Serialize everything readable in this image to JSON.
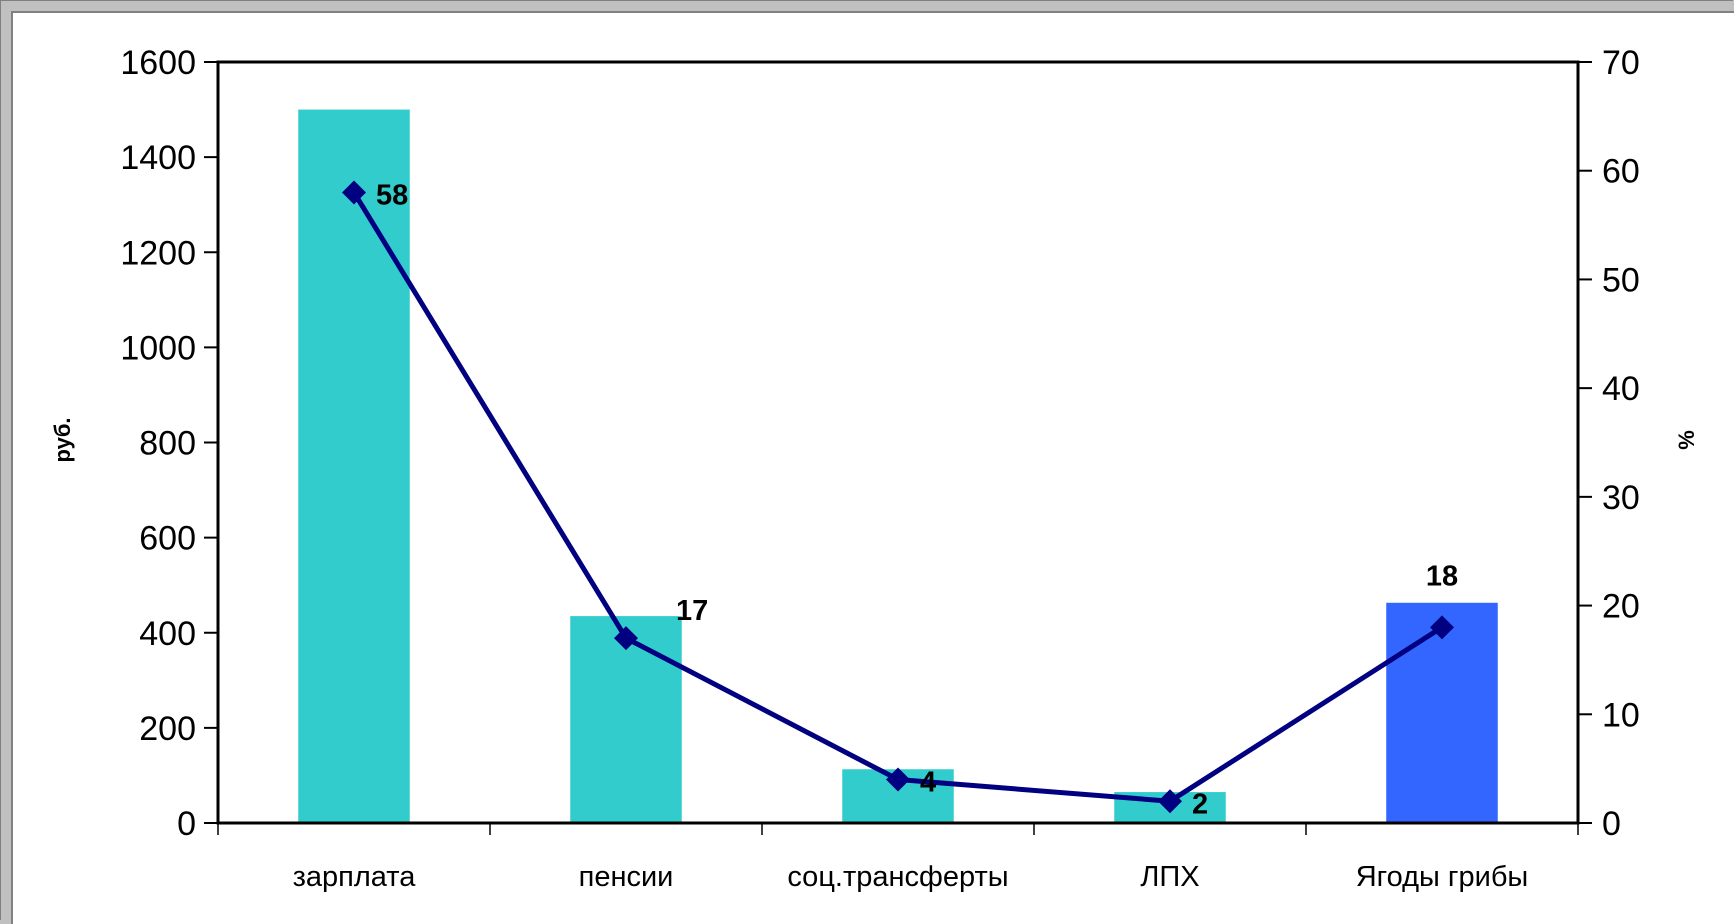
{
  "chart_data": {
    "type": "bar",
    "categories": [
      "зарплата",
      "пенсии",
      "соц.трансферты",
      "ЛПХ",
      "Ягоды грибы"
    ],
    "series": [
      {
        "type": "bar",
        "axis": "left",
        "values": [
          1500,
          435,
          113,
          65,
          463
        ],
        "colors": [
          "#33cccc",
          "#33cccc",
          "#33cccc",
          "#33cccc",
          "#3366ff"
        ]
      },
      {
        "type": "line",
        "axis": "right",
        "values": [
          58,
          17,
          4,
          2,
          18
        ],
        "color": "#000080",
        "marker": "diamond",
        "data_labels": [
          "58",
          "17",
          "4",
          "2",
          "18"
        ]
      }
    ],
    "ylabel": "руб.",
    "ylabel_right": "%",
    "ylim": [
      0,
      1600
    ],
    "ylim_right": [
      0,
      70
    ],
    "yticks": [
      "0",
      "200",
      "400",
      "600",
      "800",
      "1000",
      "1200",
      "1400",
      "1600"
    ],
    "yticks_right": [
      "0",
      "10",
      "20",
      "30",
      "40",
      "50",
      "60",
      "70"
    ],
    "grid": false,
    "legend": "none"
  }
}
